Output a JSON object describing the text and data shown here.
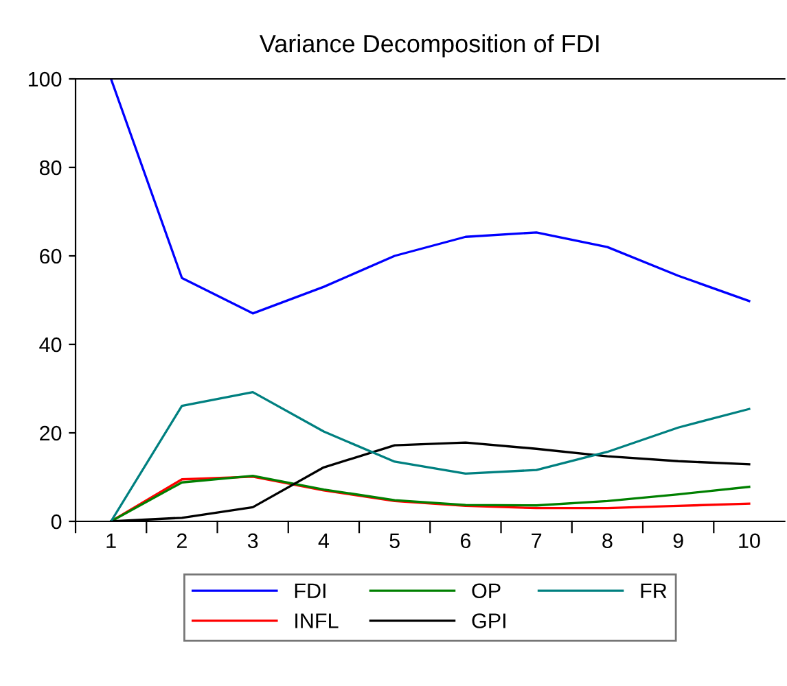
{
  "chart_data": {
    "type": "line",
    "title": "Variance Decomposition of FDI",
    "categories": [
      "1",
      "2",
      "3",
      "4",
      "5",
      "6",
      "7",
      "8",
      "9",
      "10"
    ],
    "series": [
      {
        "name": "FDI",
        "color": "#0000ff",
        "values": [
          100,
          55,
          47,
          53,
          60,
          64.3,
          65.3,
          62,
          55.5,
          49.8
        ]
      },
      {
        "name": "INFL",
        "color": "#ff0000",
        "values": [
          0,
          9.5,
          10.1,
          7,
          4.6,
          3.5,
          3,
          3,
          3.5,
          4
        ]
      },
      {
        "name": "OP",
        "color": "#008000",
        "values": [
          0,
          8.8,
          10.3,
          7.2,
          4.8,
          3.7,
          3.6,
          4.6,
          6.1,
          7.8
        ]
      },
      {
        "name": "GPI",
        "color": "#000000",
        "values": [
          0,
          0.8,
          3.2,
          12.2,
          17.2,
          17.8,
          16.4,
          14.7,
          13.6,
          12.9
        ]
      },
      {
        "name": "FR",
        "color": "#008080",
        "values": [
          0,
          26.1,
          29.2,
          20.3,
          13.5,
          10.8,
          11.6,
          15.7,
          21.2,
          25.4
        ]
      }
    ],
    "ylim": [
      0,
      100
    ],
    "yticks": [
      0,
      20,
      40,
      60,
      80,
      100
    ],
    "grid": false,
    "legend": "bottom",
    "marker": "none",
    "line_style": "solid"
  }
}
